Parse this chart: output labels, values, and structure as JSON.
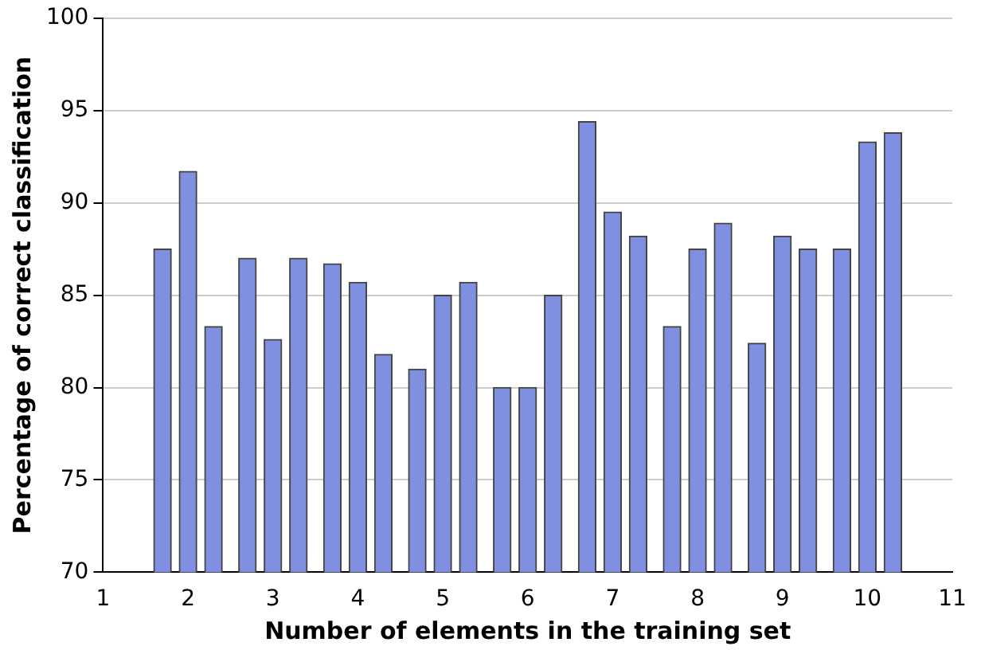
{
  "chart_data": {
    "type": "bar",
    "xlabel": "Number of elements in the training set",
    "ylabel": "Percentage of correct classification",
    "x": [
      1.7,
      2,
      2.3,
      2.7,
      3,
      3.3,
      3.7,
      4,
      4.3,
      4.7,
      5,
      5.3,
      5.7,
      6,
      6.3,
      6.7,
      7,
      7.3,
      7.7,
      8,
      8.3,
      8.7,
      9,
      9.3,
      9.7,
      10,
      10.3
    ],
    "values": [
      87.5,
      91.7,
      83.3,
      87.0,
      82.6,
      87.0,
      86.7,
      85.7,
      81.8,
      81.0,
      85.0,
      85.7,
      80.0,
      80.0,
      85.0,
      94.4,
      89.5,
      88.2,
      83.3,
      87.5,
      88.9,
      82.4,
      88.2,
      87.5,
      87.5,
      93.3,
      93.8
    ],
    "color": "#8090e0",
    "xlim": [
      1,
      11
    ],
    "xticks": [
      1,
      2,
      3,
      4,
      5,
      6,
      7,
      8,
      9,
      10,
      11
    ],
    "ylim": [
      70,
      100
    ],
    "yticks": [
      70,
      75,
      80,
      85,
      90,
      95,
      100
    ],
    "grid": "y",
    "legend": false
  }
}
